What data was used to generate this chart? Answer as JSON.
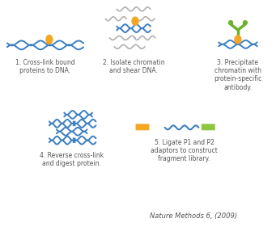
{
  "background_color": "#ffffff",
  "dna_color": "#3a7fc1",
  "histone_color": "#f5a623",
  "chromatin_gray": "#b0b0b0",
  "antibody_green": "#6ab22a",
  "adaptor_orange": "#f5a623",
  "adaptor_green": "#8dc63f",
  "text_color": "#555555",
  "step1_text": "1. Cross-link bound\nproteins to DNA.",
  "step2_text": "2. Isolate chromatin\nand shear DNA.",
  "step3_text": "3. Precipitate\nchromatin with\nprotein-specific\nantibody.",
  "step4_text": "4. Reverse cross-link\nand digest protein.",
  "step5_text": "5. Ligate P1 and P2\nadaptors to construct\nfragment library.",
  "citation": "Nature Methods 6, (2009)"
}
